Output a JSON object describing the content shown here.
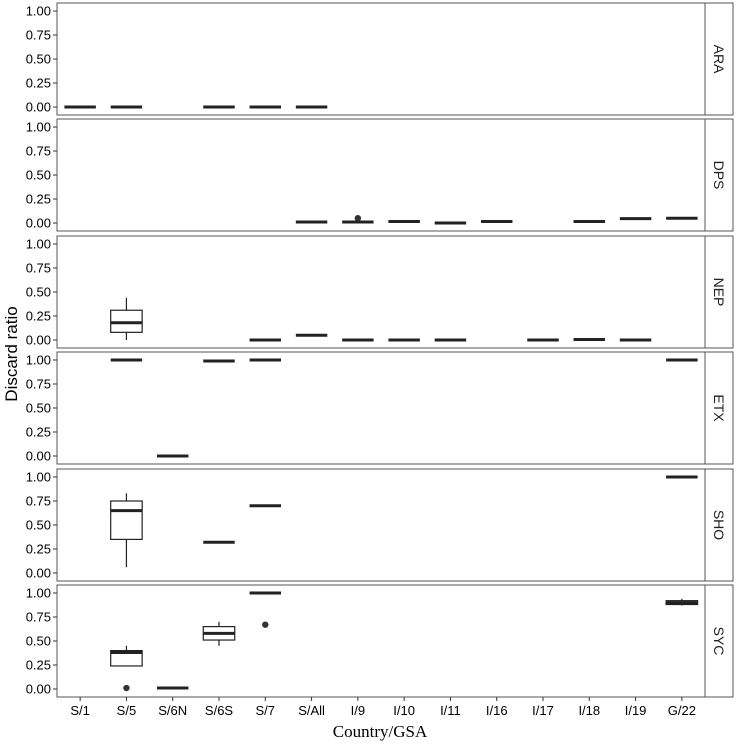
{
  "chart_data": {
    "type": "boxplot",
    "xlabel": "Country/GSA",
    "ylabel": "Discard ratio",
    "ylim": [
      0,
      1
    ],
    "y_ticks": [
      "0.00",
      "0.25",
      "0.50",
      "0.75",
      "1.00"
    ],
    "categories": [
      "S/1",
      "S/5",
      "S/6N",
      "S/6S",
      "S/7",
      "S/All",
      "I/9",
      "I/10",
      "I/11",
      "I/16",
      "I/17",
      "I/18",
      "I/19",
      "G/22"
    ],
    "panels": [
      {
        "label": "ARA",
        "boxes": [
          {
            "category": "S/1",
            "median": 0.0
          },
          {
            "category": "S/5",
            "median": 0.0
          },
          {
            "category": "S/6S",
            "median": 0.0
          },
          {
            "category": "S/7",
            "median": 0.0
          },
          {
            "category": "S/All",
            "median": 0.0
          }
        ]
      },
      {
        "label": "DPS",
        "boxes": [
          {
            "category": "S/All",
            "median": 0.01
          },
          {
            "category": "I/9",
            "median": 0.01,
            "outliers": [
              0.05
            ]
          },
          {
            "category": "I/10",
            "median": 0.015
          },
          {
            "category": "I/11",
            "median": 0.0
          },
          {
            "category": "I/16",
            "median": 0.015
          },
          {
            "category": "I/18",
            "median": 0.015
          },
          {
            "category": "I/19",
            "median": 0.045
          },
          {
            "category": "G/22",
            "median": 0.05
          }
        ]
      },
      {
        "label": "NEP",
        "boxes": [
          {
            "category": "S/5",
            "median": 0.18,
            "q1": 0.08,
            "q3": 0.31,
            "whisker_low": 0.0,
            "whisker_high": 0.44
          },
          {
            "category": "S/7",
            "median": 0.0
          },
          {
            "category": "S/All",
            "median": 0.05
          },
          {
            "category": "I/9",
            "median": 0.0
          },
          {
            "category": "I/10",
            "median": 0.0
          },
          {
            "category": "I/11",
            "median": 0.0
          },
          {
            "category": "I/17",
            "median": 0.0
          },
          {
            "category": "I/18",
            "median": 0.005
          },
          {
            "category": "I/19",
            "median": 0.0
          }
        ]
      },
      {
        "label": "ETX",
        "boxes": [
          {
            "category": "S/5",
            "median": 1.0
          },
          {
            "category": "S/6N",
            "median": 0.0
          },
          {
            "category": "S/6S",
            "median": 0.99
          },
          {
            "category": "S/7",
            "median": 1.0
          },
          {
            "category": "G/22",
            "median": 1.0
          }
        ]
      },
      {
        "label": "SHO",
        "boxes": [
          {
            "category": "S/5",
            "median": 0.65,
            "q1": 0.35,
            "q3": 0.75,
            "whisker_low": 0.06,
            "whisker_high": 0.83
          },
          {
            "category": "S/6S",
            "median": 0.32
          },
          {
            "category": "S/7",
            "median": 0.7
          },
          {
            "category": "G/22",
            "median": 1.0
          }
        ]
      },
      {
        "label": "SYC",
        "boxes": [
          {
            "category": "S/5",
            "median": 0.38,
            "q1": 0.24,
            "q3": 0.4,
            "whisker_low": 0.24,
            "whisker_high": 0.45,
            "outliers": [
              0.01
            ]
          },
          {
            "category": "S/6N",
            "median": 0.01
          },
          {
            "category": "S/6S",
            "median": 0.58,
            "q1": 0.51,
            "q3": 0.65,
            "whisker_low": 0.45,
            "whisker_high": 0.7
          },
          {
            "category": "S/7",
            "median": 1.0,
            "outliers": [
              0.67
            ]
          },
          {
            "category": "G/22",
            "median": 0.9,
            "q1": 0.88,
            "q3": 0.92,
            "whisker_low": 0.87,
            "whisker_high": 0.94
          }
        ]
      }
    ]
  }
}
